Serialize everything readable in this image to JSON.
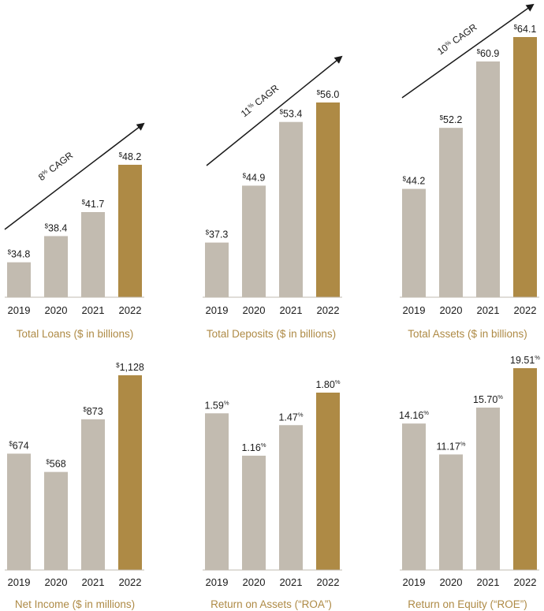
{
  "colors": {
    "bar_past": "#c2bbb0",
    "bar_current": "#ae8a45",
    "title_color": "#ae8a45",
    "text_color": "#1a1a1a",
    "axis_color": "#1a1a1a"
  },
  "chart_data": [
    {
      "type": "bar",
      "title": "Total Loans ($ in billions)",
      "categories": [
        "2019",
        "2020",
        "2021",
        "2022"
      ],
      "values": [
        34.8,
        38.4,
        41.7,
        48.2
      ],
      "value_labels": [
        "34.8",
        "38.4",
        "41.7",
        "48.2"
      ],
      "label_prefix": "$",
      "label_suffix": "",
      "highlight_index": 3,
      "ylim": [
        30,
        48.2
      ],
      "cagr_label": "8% CAGR",
      "cagr_number": "8",
      "cagr_text": " CAGR"
    },
    {
      "type": "bar",
      "title": "Total Deposits ($ in billions)",
      "categories": [
        "2019",
        "2020",
        "2021",
        "2022"
      ],
      "values": [
        37.3,
        44.9,
        53.4,
        56.0
      ],
      "value_labels": [
        "37.3",
        "44.9",
        "53.4",
        "56.0"
      ],
      "label_prefix": "$",
      "label_suffix": "",
      "highlight_index": 3,
      "ylim": [
        30,
        56.0
      ],
      "cagr_label": "11% CAGR",
      "cagr_number": "11",
      "cagr_text": " CAGR"
    },
    {
      "type": "bar",
      "title": "Total Assets ($ in billions)",
      "categories": [
        "2019",
        "2020",
        "2021",
        "2022"
      ],
      "values": [
        44.2,
        52.2,
        60.9,
        64.1
      ],
      "value_labels": [
        "44.2",
        "52.2",
        "60.9",
        "64.1"
      ],
      "label_prefix": "$",
      "label_suffix": "",
      "highlight_index": 3,
      "ylim": [
        30,
        64.1
      ],
      "cagr_label": "10% CAGR",
      "cagr_number": "10",
      "cagr_text": " CAGR"
    },
    {
      "type": "bar",
      "title": "Net Income ($ in millions)",
      "categories": [
        "2019",
        "2020",
        "2021",
        "2022"
      ],
      "values": [
        674,
        568,
        873,
        1128
      ],
      "value_labels": [
        "674",
        "568",
        "873",
        "1,128"
      ],
      "label_prefix": "$",
      "label_suffix": "",
      "highlight_index": 3,
      "ylim": [
        0,
        1128
      ]
    },
    {
      "type": "bar",
      "title": "Return on Assets (“ROA”)",
      "categories": [
        "2019",
        "2020",
        "2021",
        "2022"
      ],
      "values": [
        1.59,
        1.16,
        1.47,
        1.8
      ],
      "value_labels": [
        "1.59",
        "1.16",
        "1.47",
        "1.80"
      ],
      "label_prefix": "",
      "label_suffix": "%",
      "highlight_index": 3,
      "ylim": [
        0,
        1.8
      ]
    },
    {
      "type": "bar",
      "title": "Return on Equity (“ROE”)",
      "categories": [
        "2019",
        "2020",
        "2021",
        "2022"
      ],
      "values": [
        14.16,
        11.17,
        15.7,
        19.51
      ],
      "value_labels": [
        "14.16",
        "11.17",
        "15.70",
        "19.51"
      ],
      "label_prefix": "",
      "label_suffix": "%",
      "highlight_index": 3,
      "ylim": [
        0,
        19.51
      ]
    }
  ]
}
